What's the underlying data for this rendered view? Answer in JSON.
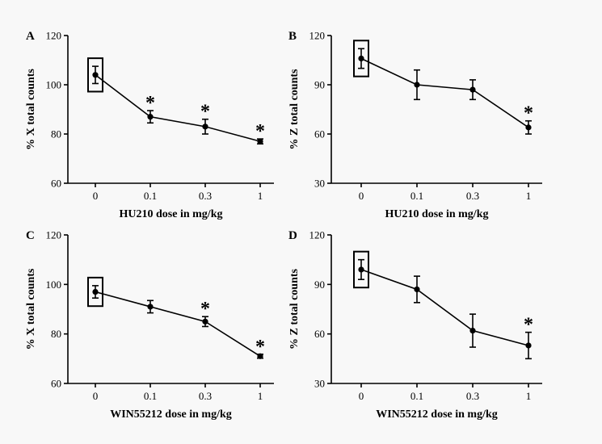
{
  "chart_data": [
    {
      "panel": "A",
      "type": "line",
      "categories": [
        "0",
        "0.1",
        "0.3",
        "1"
      ],
      "values": [
        104,
        87,
        83,
        77
      ],
      "errors": [
        3.5,
        2.5,
        3,
        1
      ],
      "significant": [
        false,
        true,
        true,
        true
      ],
      "significance_marker": "*",
      "boxed_category_index": 0,
      "xlabel": "HU210 dose in mg/kg",
      "ylabel": "% X total counts",
      "ylim": [
        60,
        120
      ],
      "yticks": [
        "60",
        "80",
        "100",
        "120"
      ],
      "grid": false
    },
    {
      "panel": "B",
      "type": "line",
      "categories": [
        "0",
        "0.1",
        "0.3",
        "1"
      ],
      "values": [
        106,
        90,
        87,
        64
      ],
      "errors": [
        6,
        9,
        6,
        4
      ],
      "significant": [
        false,
        false,
        false,
        true
      ],
      "significance_marker": "*",
      "boxed_category_index": 0,
      "xlabel": "HU210 dose in mg/kg",
      "ylabel": "% Z total counts",
      "ylim": [
        30,
        120
      ],
      "yticks": [
        "30",
        "60",
        "90",
        "120"
      ],
      "grid": false
    },
    {
      "panel": "C",
      "type": "line",
      "categories": [
        "0",
        "0.1",
        "0.3",
        "1"
      ],
      "values": [
        97,
        91,
        85,
        71
      ],
      "errors": [
        2.5,
        2.5,
        2,
        0.8
      ],
      "significant": [
        false,
        false,
        true,
        true
      ],
      "significance_marker": "*",
      "boxed_category_index": 0,
      "xlabel": "WIN55212 dose in mg/kg",
      "ylabel": "% X total counts",
      "ylim": [
        60,
        120
      ],
      "yticks": [
        "60",
        "80",
        "100",
        "120"
      ],
      "grid": false
    },
    {
      "panel": "D",
      "type": "line",
      "categories": [
        "0",
        "0.1",
        "0.3",
        "1"
      ],
      "values": [
        99,
        87,
        62,
        53
      ],
      "errors": [
        6,
        8,
        10,
        8
      ],
      "significant": [
        false,
        false,
        false,
        true
      ],
      "significance_marker": "*",
      "boxed_category_index": 0,
      "xlabel": "WIN55212 dose in mg/kg",
      "ylabel": "% Z total counts",
      "ylim": [
        30,
        120
      ],
      "yticks": [
        "30",
        "60",
        "90",
        "120"
      ],
      "grid": false
    }
  ]
}
